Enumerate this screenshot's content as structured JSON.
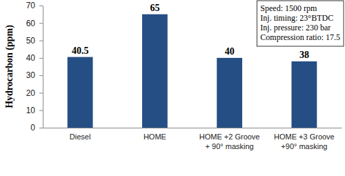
{
  "chart_data": {
    "type": "bar",
    "y_label": "Hydrocarbon (ppm)",
    "categories": [
      "Diesel",
      "HOME",
      "HOME +2 Groove\n+ 90° masking",
      "HOME +3 Groove\n+90° masking"
    ],
    "values": [
      40.5,
      65,
      40,
      38
    ],
    "color": "#254e84",
    "data_labels": true,
    "ylim": [
      0,
      70
    ],
    "yticks": [
      0,
      10,
      20,
      30,
      40,
      50,
      60,
      70
    ],
    "grid": false,
    "annotations": [
      "Speed: 1500 rpm",
      "Inj. timing: 23°BTDC",
      "Inj. pressure: 230 bar",
      "Compression ratio: 17.5"
    ]
  }
}
